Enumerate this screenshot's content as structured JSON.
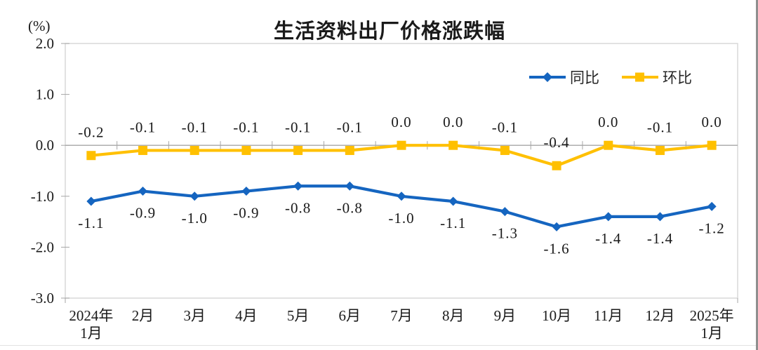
{
  "chart_data": {
    "type": "line",
    "title": "生活资料出厂价格涨跌幅",
    "y_unit": "(%)",
    "categories": [
      "2024年\n1月",
      "2月",
      "3月",
      "4月",
      "5月",
      "6月",
      "7月",
      "8月",
      "9月",
      "10月",
      "11月",
      "12月",
      "2025年\n1月"
    ],
    "series": [
      {
        "name": "同比",
        "marker": "diamond",
        "color": "#1565C0",
        "label_position": "below",
        "values": [
          -1.1,
          -0.9,
          -1.0,
          -0.9,
          -0.8,
          -0.8,
          -1.0,
          -1.1,
          -1.3,
          -1.6,
          -1.4,
          -1.4,
          -1.2
        ],
        "labels": [
          "-1.1",
          "-0.9",
          "-1.0",
          "-0.9",
          "-0.8",
          "-0.8",
          "-1.0",
          "-1.1",
          "-1.3",
          "-1.6",
          "-1.4",
          "-1.4",
          "-1.2"
        ]
      },
      {
        "name": "环比",
        "marker": "square",
        "color": "#FFC000",
        "label_position": "above",
        "values": [
          -0.2,
          -0.1,
          -0.1,
          -0.1,
          -0.1,
          -0.1,
          0.0,
          0.0,
          -0.1,
          -0.4,
          0.0,
          -0.1,
          0.0
        ],
        "labels": [
          "-0.2",
          "-0.1",
          "-0.1",
          "-0.1",
          "-0.1",
          "-0.1",
          "0.0",
          "0.0",
          "-0.1",
          "-0.4",
          "0.0",
          "-0.1",
          "0.0"
        ]
      }
    ],
    "ylim": [
      -3.0,
      2.0
    ],
    "yticks": [
      "2.0",
      "1.0",
      "0.0",
      "-1.0",
      "-2.0",
      "-3.0"
    ],
    "grid": false,
    "legend_position": "top-right",
    "axis_color": "#A6A6A6",
    "border_color": "#D9D9D9",
    "label_color": "#1a1a1a"
  }
}
